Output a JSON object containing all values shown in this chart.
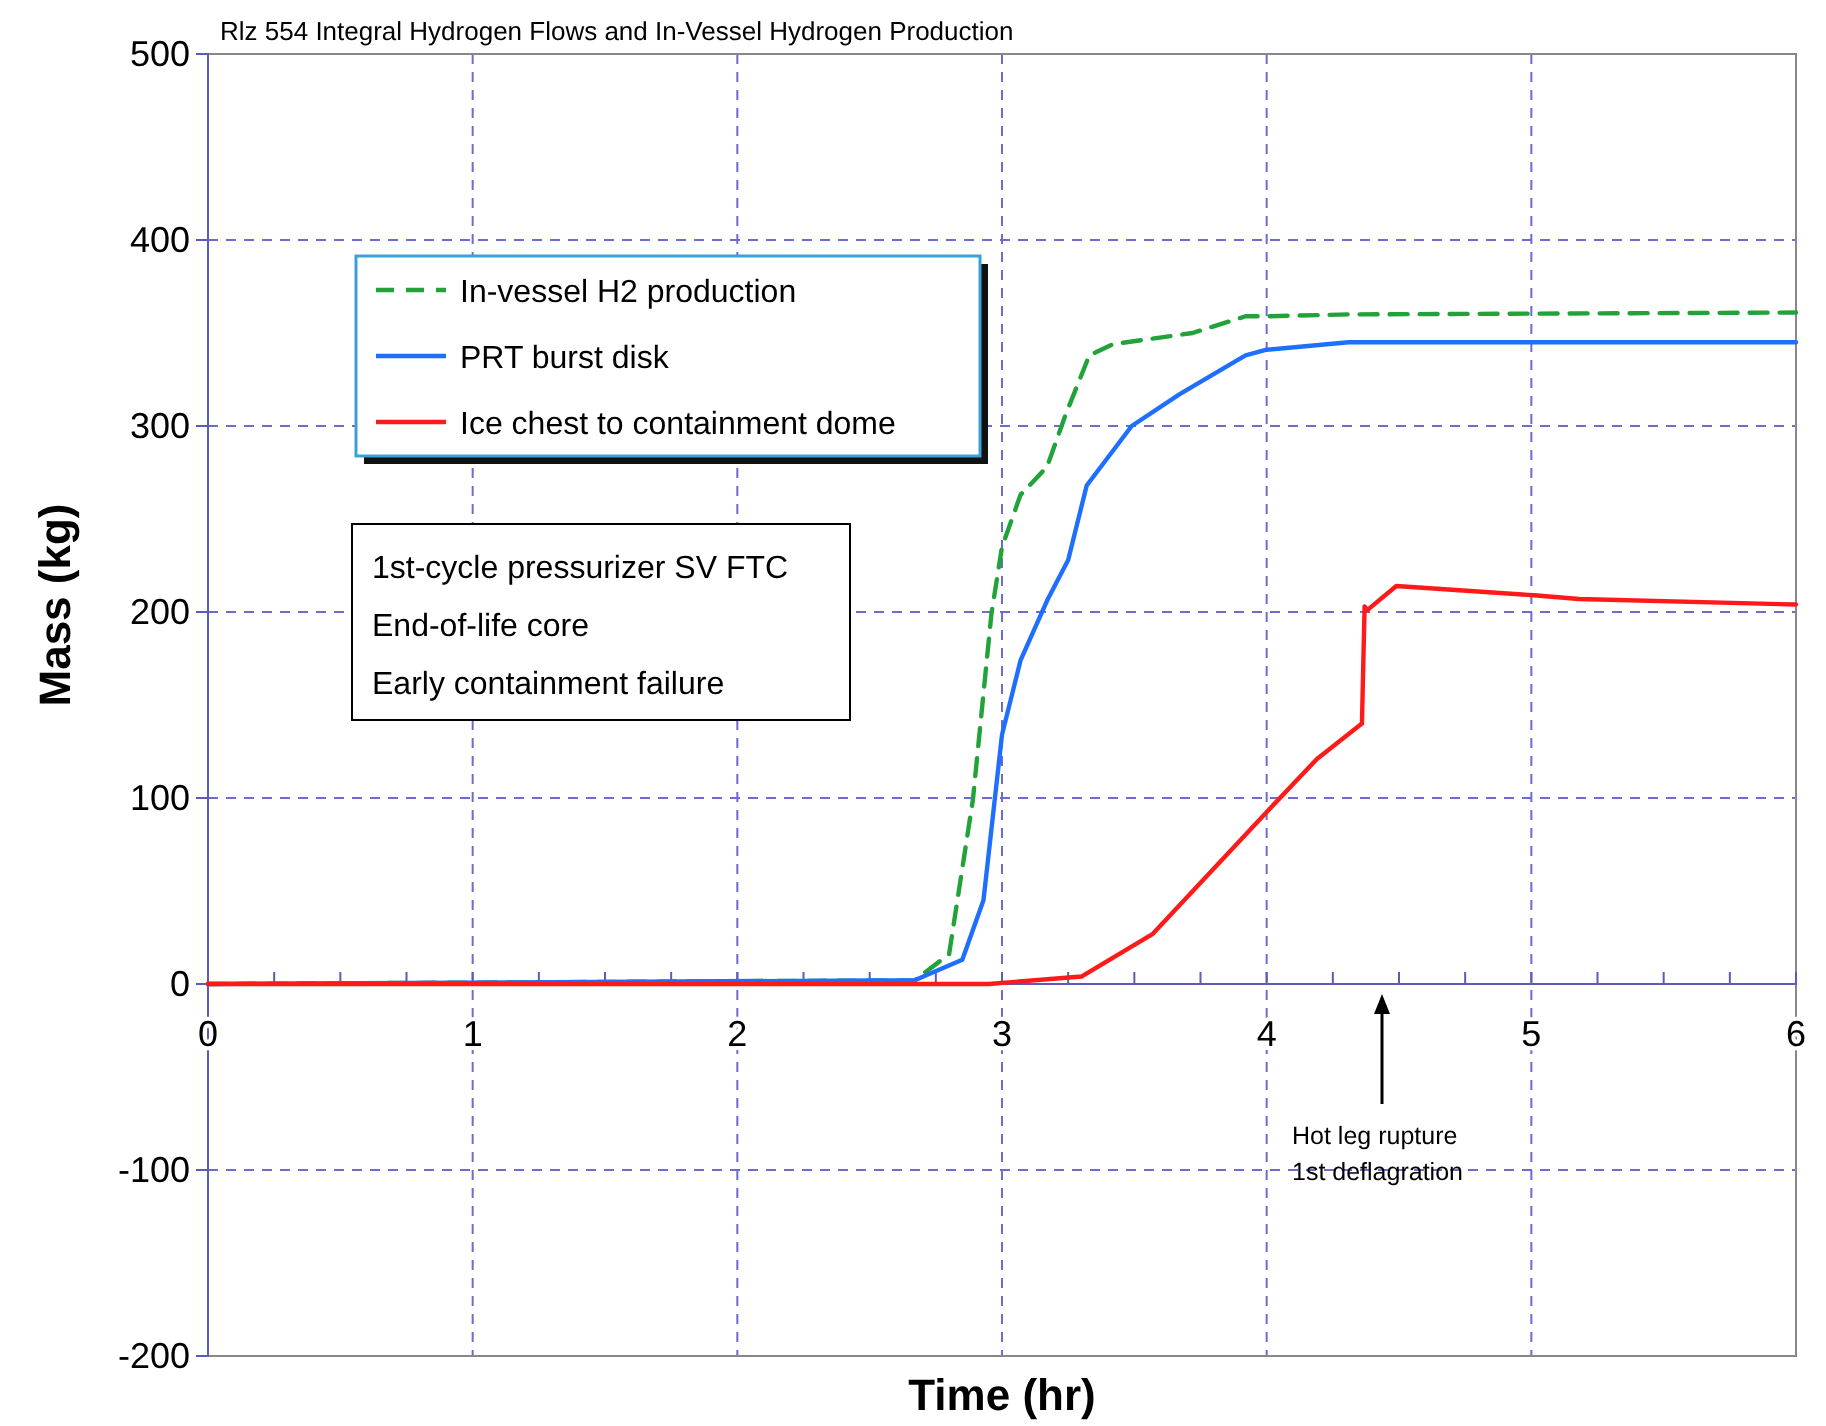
{
  "chart_data": {
    "type": "line",
    "title": "Rlz 554 Integral Hydrogen Flows and In-Vessel Hydrogen Production",
    "xlabel": "Time (hr)",
    "ylabel": "Mass (kg)",
    "xlim": [
      0,
      6
    ],
    "ylim": [
      -200,
      500
    ],
    "xticks": [
      0,
      {
        "value": 0.25,
        "label": null
      },
      {
        "value": 0.5,
        "label": null
      },
      {
        "value": 0.75,
        "label": null
      },
      1,
      {
        "value": 1.25,
        "label": null
      },
      {
        "value": 1.5,
        "label": null
      },
      {
        "value": 1.75,
        "label": null
      },
      2,
      {
        "value": 2.25,
        "label": null
      },
      {
        "value": 2.5,
        "label": null
      },
      {
        "value": 2.75,
        "label": null
      },
      3,
      {
        "value": 3.25,
        "label": null
      },
      {
        "value": 3.5,
        "label": null
      },
      {
        "value": 3.75,
        "label": null
      },
      4,
      {
        "value": 4.25,
        "label": null
      },
      {
        "value": 4.5,
        "label": null
      },
      {
        "value": 4.75,
        "label": null
      },
      5,
      {
        "value": 5.25,
        "label": null
      },
      {
        "value": 5.5,
        "label": null
      },
      {
        "value": 5.75,
        "label": null
      },
      6
    ],
    "yticks": [
      -200,
      -100,
      0,
      100,
      200,
      300,
      400,
      500
    ],
    "grid": true,
    "legend": "top left",
    "marker": "none",
    "series": [
      {
        "name": "In-vessel H2 production",
        "color": "#22a33a",
        "line_style": "dashed",
        "x": [
          0,
          2.67,
          2.8,
          2.89,
          2.96,
          3.0,
          3.07,
          3.17,
          3.24,
          3.33,
          3.42,
          3.72,
          3.92,
          4.0,
          4.31,
          6
        ],
        "values": [
          0,
          2,
          16,
          99,
          199,
          235,
          263,
          278,
          306,
          338,
          344,
          350,
          359,
          359,
          360,
          361
        ]
      },
      {
        "name": "PRT burst disk",
        "color": "#1f6fff",
        "line_style": "solid",
        "x": [
          0,
          2.67,
          2.85,
          2.93,
          3.0,
          3.07,
          3.17,
          3.25,
          3.32,
          3.49,
          3.67,
          3.92,
          4.0,
          4.31,
          6
        ],
        "values": [
          0,
          2,
          13,
          45,
          134,
          174,
          206,
          228,
          268,
          300,
          317,
          338,
          341,
          345,
          345
        ]
      },
      {
        "name": "Ice chest to containment dome",
        "color": "#ff1a1a",
        "line_style": "solid",
        "x": [
          0,
          2.95,
          3.3,
          3.57,
          3.82,
          4.01,
          4.19,
          4.36,
          4.37,
          4.38,
          4.49,
          5.01,
          5.18,
          6
        ],
        "values": [
          0,
          0,
          4,
          27,
          65,
          94,
          121,
          140,
          203,
          201,
          214,
          209,
          207,
          204
        ]
      }
    ],
    "annotations": [
      "1st-cycle pressurizer SV FTC\nEnd-of-life core\nEarly containment failure",
      "Hot leg rupture\n1st deflagration"
    ]
  }
}
